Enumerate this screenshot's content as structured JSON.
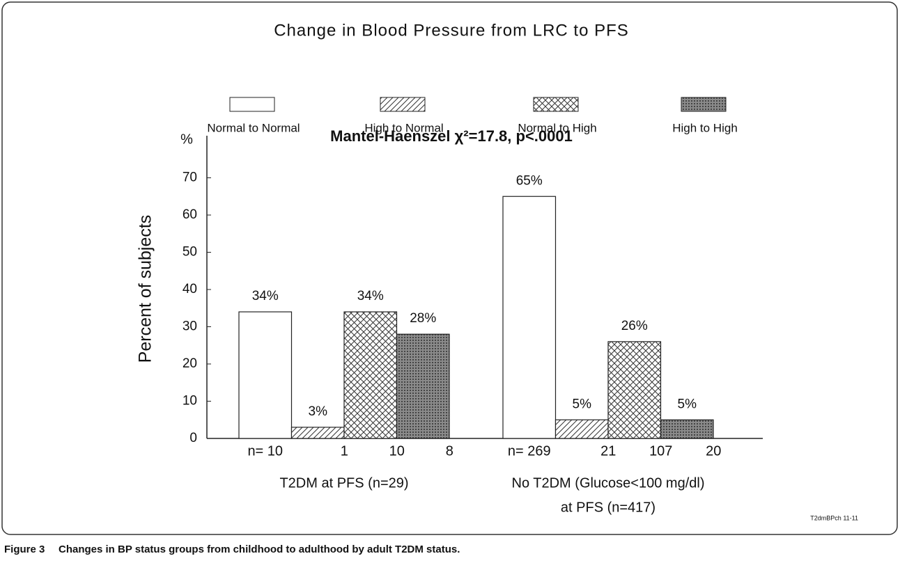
{
  "chart_data": {
    "type": "bar",
    "title": "Change in Blood Pressure from LRC to PFS",
    "subtitle": "Mantel-Haenszel χ²=17.8, p<.0001",
    "y_label": "Percent of subjects",
    "y_unit": "%",
    "note": "T2dmBPch 11-11",
    "categories": [
      [
        "T2DM at PFS (n=29)"
      ],
      [
        "No T2DM (Glucose<100 mg/dl)",
        "at PFS (n=417)"
      ]
    ],
    "series": [
      {
        "name": "Normal to Normal",
        "color": "#ffffff",
        "pattern": "none",
        "values": [
          34,
          65
        ],
        "value_labels": [
          "34%",
          "65%"
        ],
        "n_labels": [
          "n=  10",
          "n=  269"
        ]
      },
      {
        "name": "High to Normal",
        "color": "#ffffff",
        "pattern": "hatch",
        "values": [
          3,
          5
        ],
        "value_labels": [
          "3%",
          "5%"
        ],
        "n_labels": [
          "1",
          "21"
        ]
      },
      {
        "name": "Normal to High",
        "color": "#ffffff",
        "pattern": "crosshatch",
        "values": [
          34,
          26
        ],
        "value_labels": [
          "34%",
          "26%"
        ],
        "n_labels": [
          "10",
          "107"
        ]
      },
      {
        "name": "High to High",
        "color": "#8a8a8a",
        "pattern": "dots",
        "values": [
          28,
          5
        ],
        "value_labels": [
          "28%",
          "5%"
        ],
        "n_labels": [
          "8",
          "20"
        ]
      }
    ],
    "ylim": [
      0,
      80
    ],
    "yticks": [
      0,
      10,
      20,
      30,
      40,
      50,
      60,
      70
    ],
    "grid": false
  },
  "caption": {
    "label": "Figure 3",
    "text": "Changes in BP status groups from childhood to adulthood by adult T2DM status."
  }
}
